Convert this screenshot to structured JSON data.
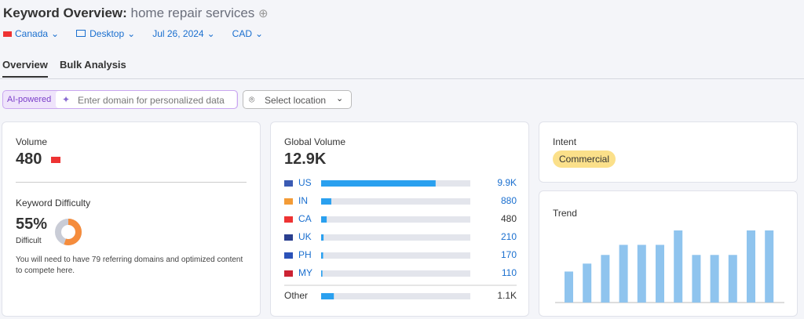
{
  "header": {
    "title": "Keyword Overview:",
    "keyword": "home repair services"
  },
  "filters": [
    "Canada",
    "Desktop",
    "Jul 26, 2024",
    "CAD"
  ],
  "tabs": [
    "Overview",
    "Bulk Analysis"
  ],
  "toolbar": {
    "ai_badge": "AI-powered",
    "domain_placeholder": "Enter domain for personalized data",
    "location": "Select location"
  },
  "volume": {
    "label": "Volume",
    "value": 480
  },
  "difficulty": {
    "label": "Keyword Difficulty",
    "value": 55,
    "value_label": "55%",
    "level": "Difficult",
    "note": "You will need to have 79 referring domains and optimized content to compete here."
  },
  "global_volume": {
    "label": "Global Volume",
    "total": 12900,
    "total_label": "12.9K",
    "bar_color": "#2aa0ef",
    "countries": [
      "US",
      "IN",
      "CA",
      "UK",
      "PH",
      "MY",
      "Other"
    ],
    "values": [
      9900,
      880,
      480,
      210,
      170,
      110,
      1100
    ],
    "value_labels": [
      "9.9K",
      "880",
      "480",
      "210",
      "170",
      "110",
      "1.1K"
    ]
  },
  "intent": {
    "label": "Intent",
    "value": "Commercial"
  },
  "trend": {
    "label": "Trend",
    "color": "#8fc4ee",
    "values": [
      43,
      54,
      66,
      80,
      80,
      80,
      100,
      66,
      66,
      66,
      100,
      100
    ]
  }
}
